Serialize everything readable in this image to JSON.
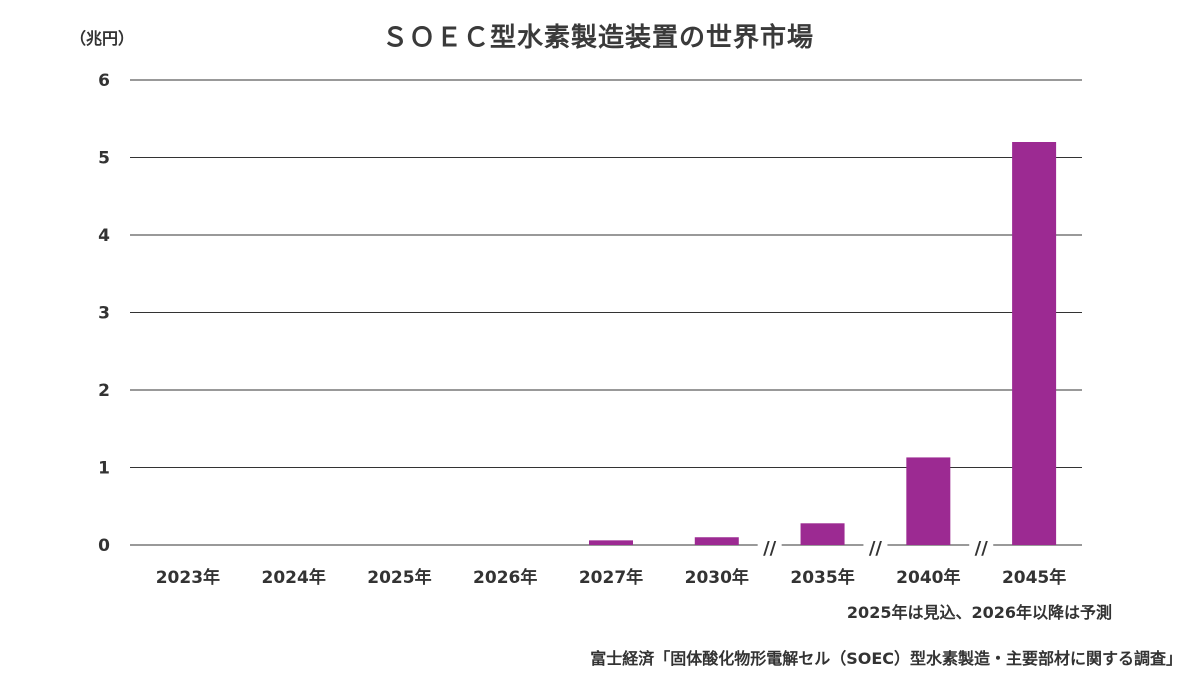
{
  "chart_data": {
    "type": "bar",
    "title": "ＳＯＥＣ型水素製造装置の世界市場",
    "unit_label": "（兆円）",
    "categories": [
      "2023年",
      "2024年",
      "2025年",
      "2026年",
      "2027年",
      "2030年",
      "2035年",
      "2040年",
      "2045年"
    ],
    "values": [
      0,
      0,
      0,
      0,
      0.06,
      0.1,
      0.28,
      1.13,
      5.2
    ],
    "ylim": [
      0,
      6
    ],
    "yticks": [
      "0",
      "1",
      "2",
      "3",
      "4",
      "5",
      "6"
    ],
    "grid": true,
    "axis_breaks": [
      {
        "between": [
          "2030年",
          "2035年"
        ],
        "symbol": "//"
      },
      {
        "between": [
          "2035年",
          "2040年"
        ],
        "symbol": "//"
      },
      {
        "between": [
          "2040年",
          "2045年"
        ],
        "symbol": "//"
      }
    ],
    "bar_color": "#9c2a92",
    "note": "2025年は見込、2026年以降は予測",
    "source": "富士経済「固体酸化物形電解セル（SOEC）型水素製造・主要部材に関する調査」"
  }
}
